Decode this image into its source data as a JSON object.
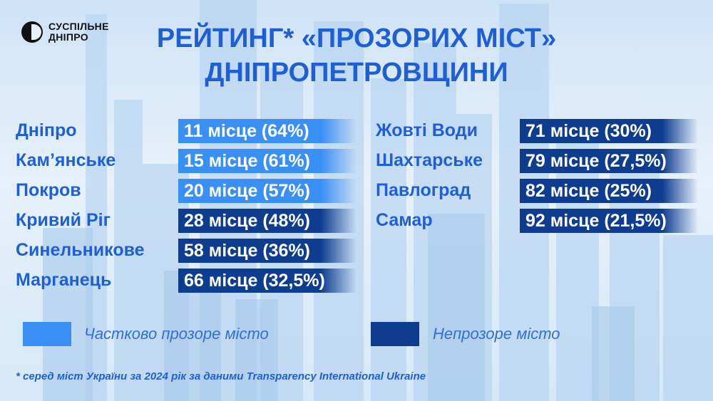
{
  "logo": {
    "line1": "СУСПІЛЬНЕ",
    "line2": "ДНІПРО"
  },
  "title": {
    "line1": "РЕЙТИНГ* «ПРОЗОРИХ МІСТ»",
    "line2": "ДНІПРОПЕТРОВЩИНИ"
  },
  "colors": {
    "partial": "#3a8ff5",
    "opaque": "#0e3c8f",
    "text": "#1f5fd6"
  },
  "chart_data": {
    "type": "table",
    "title": "РЕЙТИНГ* «ПРОЗОРИХ МІСТ» ДНІПРОПЕТРОВЩИНИ",
    "columns": [
      {
        "rows": [
          {
            "city": "Дніпро",
            "label": "11 місце (64%)",
            "rank": 11,
            "percent": 64,
            "status": "partial"
          },
          {
            "city": "Кам’янське",
            "label": "15 місце (61%)",
            "rank": 15,
            "percent": 61,
            "status": "partial"
          },
          {
            "city": "Покров",
            "label": "20 місце (57%)",
            "rank": 20,
            "percent": 57,
            "status": "partial"
          },
          {
            "city": "Кривий Ріг",
            "label": "28 місце (48%)",
            "rank": 28,
            "percent": 48,
            "status": "opaque"
          },
          {
            "city": "Синельникове",
            "label": "58 місце (36%)",
            "rank": 58,
            "percent": 36,
            "status": "opaque"
          },
          {
            "city": "Марганець",
            "label": "66 місце (32,5%)",
            "rank": 66,
            "percent": 32.5,
            "status": "opaque"
          }
        ]
      },
      {
        "rows": [
          {
            "city": "Жовті Води",
            "label": "71 місце (30%)",
            "rank": 71,
            "percent": 30,
            "status": "opaque"
          },
          {
            "city": "Шахтарське",
            "label": "79 місце (27,5%)",
            "rank": 79,
            "percent": 27.5,
            "status": "opaque"
          },
          {
            "city": "Павлоград",
            "label": "82 місце (25%)",
            "rank": 82,
            "percent": 25,
            "status": "opaque"
          },
          {
            "city": "Самар",
            "label": "92 місце (21,5%)",
            "rank": 92,
            "percent": 21.5,
            "status": "opaque"
          }
        ]
      }
    ],
    "legend": [
      {
        "status": "partial",
        "label": "Частково прозоре місто"
      },
      {
        "status": "opaque",
        "label": "Непрозоре місто"
      }
    ],
    "footnote": "* серед міст України за 2024 рік за даними Transparency International Ukraine"
  }
}
